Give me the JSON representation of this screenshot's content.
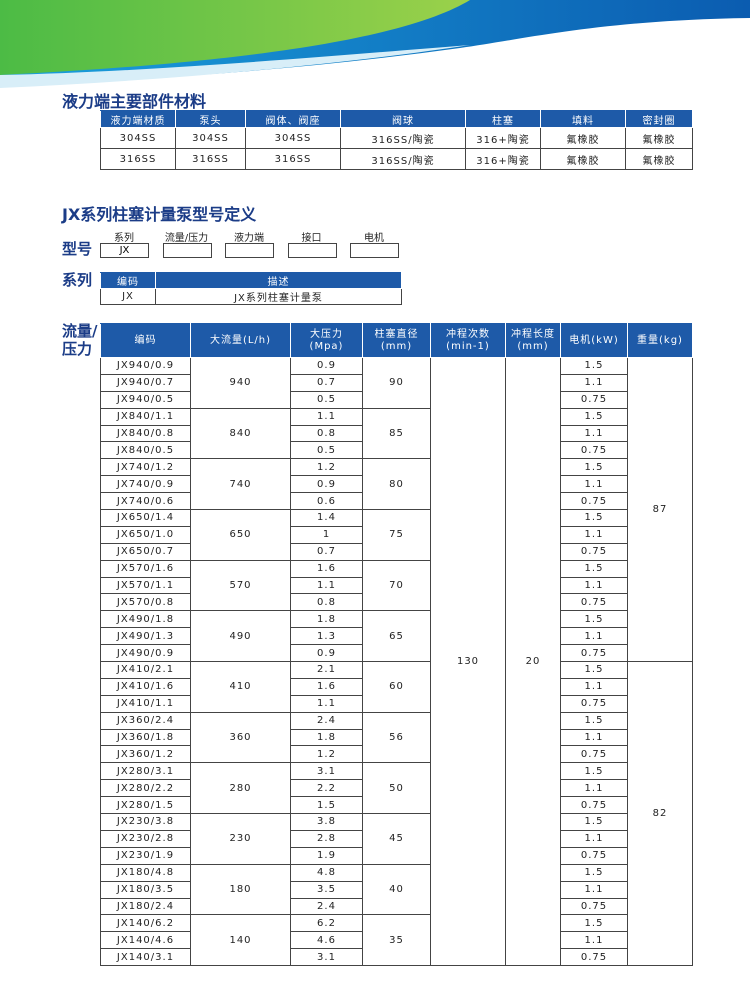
{
  "section1": {
    "title": "液力端主要部件材料",
    "table": {
      "header": [
        "液力端材质",
        "泵头",
        "阀体、阀座",
        "阀球",
        "柱塞",
        "填料",
        "密封圈"
      ],
      "rows": [
        [
          "304SS",
          "304SS",
          "304SS",
          "316SS/陶瓷",
          "316+陶瓷",
          "氟橡胶",
          "氟橡胶"
        ],
        [
          "316SS",
          "316SS",
          "316SS",
          "316SS/陶瓷",
          "316+陶瓷",
          "氟橡胶",
          "氟橡胶"
        ]
      ]
    }
  },
  "section2": {
    "title": "JX系列柱塞计量泵型号定义",
    "model": {
      "label": "型号",
      "fields": [
        {
          "label": "系列",
          "value": "JX"
        },
        {
          "label": "流量/压力"
        },
        {
          "label": "液力端"
        },
        {
          "label": "接口"
        },
        {
          "label": "电机"
        }
      ]
    },
    "series": {
      "label": "系列",
      "header": [
        "编码",
        "描述"
      ],
      "row": [
        "JX",
        "JX系列柱塞计量泵"
      ]
    },
    "spec": {
      "label_lines": [
        "流量/",
        "压力"
      ],
      "header": [
        [
          "编码"
        ],
        [
          "大流量(L/h)"
        ],
        [
          "大压力",
          "(Mpa)"
        ],
        [
          "柱塞直径",
          "(mm)"
        ],
        [
          "冲程次数",
          "(min-1)"
        ],
        [
          "冲程长度",
          "(mm)"
        ],
        [
          "电机(kW)"
        ],
        [
          "重量(kg)"
        ]
      ],
      "stroke_rate": 130,
      "stroke_length": 20,
      "weights": [
        87,
        82
      ],
      "groups": [
        {
          "flow": 940,
          "diameter": 90,
          "rows": [
            {
              "code": "JX940/0.9",
              "pressure": 0.9,
              "motor": 1.5
            },
            {
              "code": "JX940/0.7",
              "pressure": 0.7,
              "motor": 1.1
            },
            {
              "code": "JX940/0.5",
              "pressure": 0.5,
              "motor": 0.75
            }
          ]
        },
        {
          "flow": 840,
          "diameter": 85,
          "rows": [
            {
              "code": "JX840/1.1",
              "pressure": 1.1,
              "motor": 1.5
            },
            {
              "code": "JX840/0.8",
              "pressure": 0.8,
              "motor": 1.1
            },
            {
              "code": "JX840/0.5",
              "pressure": 0.5,
              "motor": 0.75
            }
          ]
        },
        {
          "flow": 740,
          "diameter": 80,
          "rows": [
            {
              "code": "JX740/1.2",
              "pressure": 1.2,
              "motor": 1.5
            },
            {
              "code": "JX740/0.9",
              "pressure": 0.9,
              "motor": 1.1
            },
            {
              "code": "JX740/0.6",
              "pressure": 0.6,
              "motor": 0.75
            }
          ]
        },
        {
          "flow": 650,
          "diameter": 75,
          "rows": [
            {
              "code": "JX650/1.4",
              "pressure": 1.4,
              "motor": 1.5
            },
            {
              "code": "JX650/1.0",
              "pressure": 1,
              "motor": 1.1
            },
            {
              "code": "JX650/0.7",
              "pressure": 0.7,
              "motor": 0.75
            }
          ]
        },
        {
          "flow": 570,
          "diameter": 70,
          "rows": [
            {
              "code": "JX570/1.6",
              "pressure": 1.6,
              "motor": 1.5
            },
            {
              "code": "JX570/1.1",
              "pressure": 1.1,
              "motor": 1.1
            },
            {
              "code": "JX570/0.8",
              "pressure": 0.8,
              "motor": 0.75
            }
          ]
        },
        {
          "flow": 490,
          "diameter": 65,
          "rows": [
            {
              "code": "JX490/1.8",
              "pressure": 1.8,
              "motor": 1.5
            },
            {
              "code": "JX490/1.3",
              "pressure": 1.3,
              "motor": 1.1
            },
            {
              "code": "JX490/0.9",
              "pressure": 0.9,
              "motor": 0.75
            }
          ]
        },
        {
          "flow": 410,
          "diameter": 60,
          "rows": [
            {
              "code": "JX410/2.1",
              "pressure": 2.1,
              "motor": 1.5
            },
            {
              "code": "JX410/1.6",
              "pressure": 1.6,
              "motor": 1.1
            },
            {
              "code": "JX410/1.1",
              "pressure": 1.1,
              "motor": 0.75
            }
          ]
        },
        {
          "flow": 360,
          "diameter": 56,
          "rows": [
            {
              "code": "JX360/2.4",
              "pressure": 2.4,
              "motor": 1.5
            },
            {
              "code": "JX360/1.8",
              "pressure": 1.8,
              "motor": 1.1
            },
            {
              "code": "JX360/1.2",
              "pressure": 1.2,
              "motor": 0.75
            }
          ]
        },
        {
          "flow": 280,
          "diameter": 50,
          "rows": [
            {
              "code": "JX280/3.1",
              "pressure": 3.1,
              "motor": 1.5
            },
            {
              "code": "JX280/2.2",
              "pressure": 2.2,
              "motor": 1.1
            },
            {
              "code": "JX280/1.5",
              "pressure": 1.5,
              "motor": 0.75
            }
          ]
        },
        {
          "flow": 230,
          "diameter": 45,
          "rows": [
            {
              "code": "JX230/3.8",
              "pressure": 3.8,
              "motor": 1.5
            },
            {
              "code": "JX230/2.8",
              "pressure": 2.8,
              "motor": 1.1
            },
            {
              "code": "JX230/1.9",
              "pressure": 1.9,
              "motor": 0.75
            }
          ]
        },
        {
          "flow": 180,
          "diameter": 40,
          "rows": [
            {
              "code": "JX180/4.8",
              "pressure": 4.8,
              "motor": 1.5
            },
            {
              "code": "JX180/3.5",
              "pressure": 3.5,
              "motor": 1.1
            },
            {
              "code": "JX180/2.4",
              "pressure": 2.4,
              "motor": 0.75
            }
          ]
        },
        {
          "flow": 140,
          "diameter": 35,
          "rows": [
            {
              "code": "JX140/6.2",
              "pressure": 6.2,
              "motor": 1.5
            },
            {
              "code": "JX140/4.6",
              "pressure": 4.6,
              "motor": 1.1
            },
            {
              "code": "JX140/3.1",
              "pressure": 3.1,
              "motor": 0.75
            }
          ]
        }
      ]
    }
  }
}
